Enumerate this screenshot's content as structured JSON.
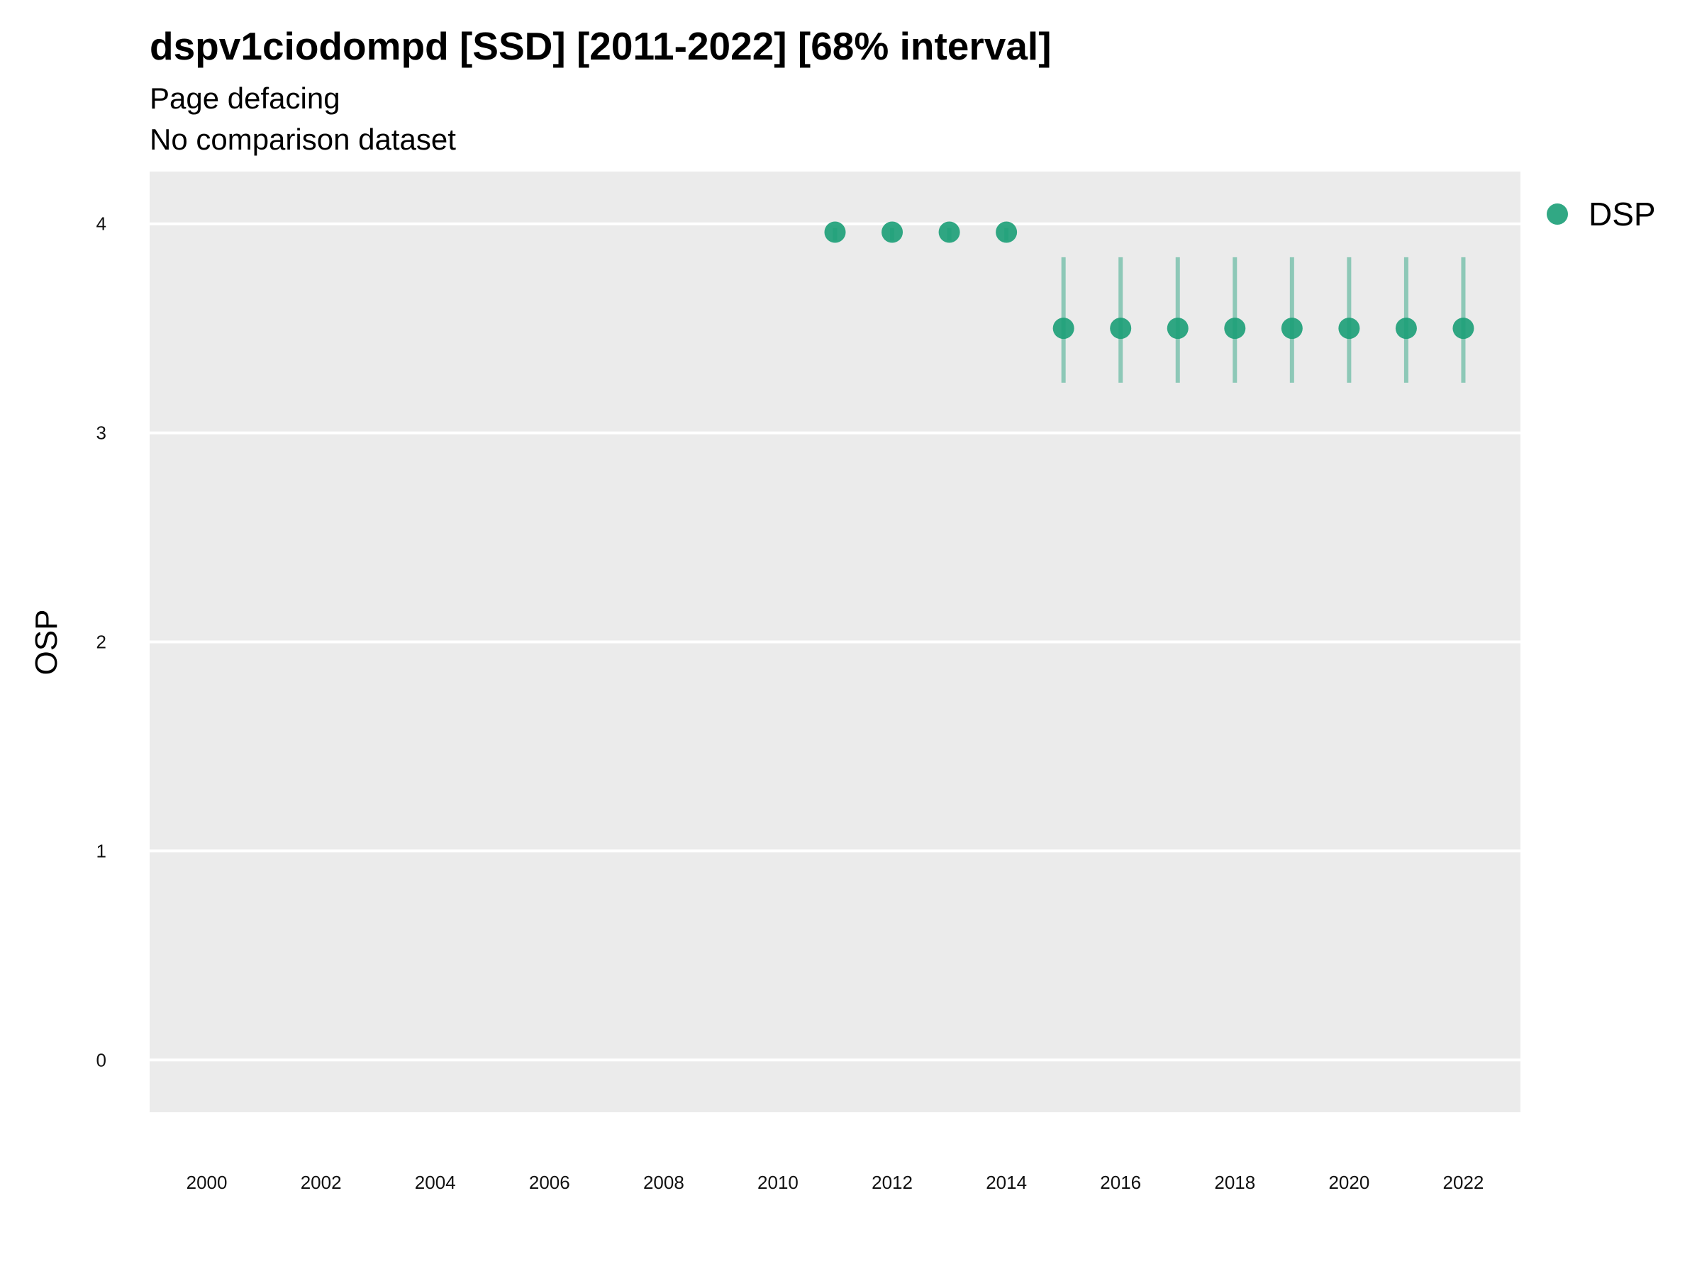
{
  "chart_data": {
    "type": "scatter",
    "title": "dspv1ciodompd [SSD] [2011-2022] [68% interval]",
    "subtitle_lines": [
      "Page defacing",
      "No comparison dataset"
    ],
    "xlabel": "",
    "ylabel": "OSP",
    "x_ticks": [
      2000,
      2002,
      2004,
      2006,
      2008,
      2010,
      2012,
      2014,
      2016,
      2018,
      2020,
      2022
    ],
    "y_ticks": [
      0,
      1,
      2,
      3,
      4
    ],
    "xlim": [
      1999,
      2023
    ],
    "ylim": [
      -0.25,
      4.25
    ],
    "grid": true,
    "legend_position": "right",
    "series": [
      {
        "name": "DSP",
        "color": "#1b9e77",
        "points": [
          {
            "x": 2011,
            "y": 3.96,
            "low": 3.92,
            "high": 3.98
          },
          {
            "x": 2012,
            "y": 3.96,
            "low": 3.92,
            "high": 3.98
          },
          {
            "x": 2013,
            "y": 3.96,
            "low": 3.92,
            "high": 3.98
          },
          {
            "x": 2014,
            "y": 3.96,
            "low": 3.92,
            "high": 3.98
          },
          {
            "x": 2015,
            "y": 3.5,
            "low": 3.24,
            "high": 3.84
          },
          {
            "x": 2016,
            "y": 3.5,
            "low": 3.24,
            "high": 3.84
          },
          {
            "x": 2017,
            "y": 3.5,
            "low": 3.24,
            "high": 3.84
          },
          {
            "x": 2018,
            "y": 3.5,
            "low": 3.24,
            "high": 3.84
          },
          {
            "x": 2019,
            "y": 3.5,
            "low": 3.24,
            "high": 3.84
          },
          {
            "x": 2020,
            "y": 3.5,
            "low": 3.24,
            "high": 3.84
          },
          {
            "x": 2021,
            "y": 3.5,
            "low": 3.24,
            "high": 3.84
          },
          {
            "x": 2022,
            "y": 3.5,
            "low": 3.24,
            "high": 3.84
          }
        ]
      }
    ]
  },
  "colors": {
    "panel_background": "#ebebeb",
    "grid_line": "#ffffff",
    "series_color": "#1b9e77"
  }
}
